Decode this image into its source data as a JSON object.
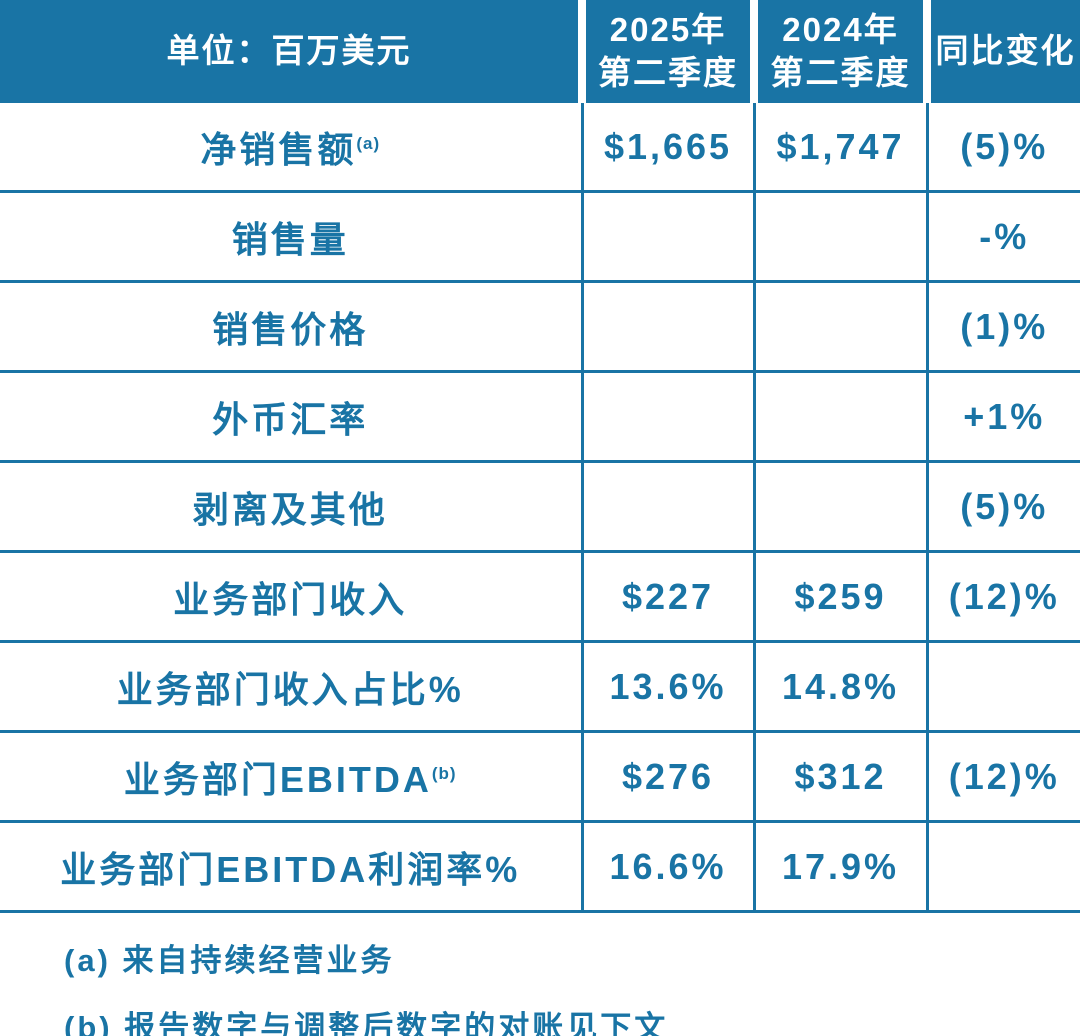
{
  "accent_color": "#1974a5",
  "background_color": "#ffffff",
  "table": {
    "header": {
      "unit_label": "单位：百万美元",
      "col_2025": {
        "line1": "2025年",
        "line2": "第二季度"
      },
      "col_2024": {
        "line1": "2024年",
        "line2": "第二季度"
      },
      "col_change": "同比变化"
    },
    "rows": [
      {
        "label": "净销售额",
        "sup": "(a)",
        "v2025": "$1,665",
        "v2024": "$1,747",
        "change": "(5)%"
      },
      {
        "label": "销售量",
        "sup": "",
        "v2025": "",
        "v2024": "",
        "change": "-%"
      },
      {
        "label": "销售价格",
        "sup": "",
        "v2025": "",
        "v2024": "",
        "change": "(1)%"
      },
      {
        "label": "外币汇率",
        "sup": "",
        "v2025": "",
        "v2024": "",
        "change": "+1%"
      },
      {
        "label": "剥离及其他",
        "sup": "",
        "v2025": "",
        "v2024": "",
        "change": "(5)%"
      },
      {
        "label": "业务部门收入",
        "sup": "",
        "v2025": "$227",
        "v2024": "$259",
        "change": "(12)%"
      },
      {
        "label": "业务部门收入占比%",
        "sup": "",
        "v2025": "13.6%",
        "v2024": "14.8%",
        "change": ""
      },
      {
        "label": "业务部门EBITDA",
        "sup": "(b)",
        "v2025": "$276",
        "v2024": "$312",
        "change": "(12)%"
      },
      {
        "label": "业务部门EBITDA利润率%",
        "sup": "",
        "v2025": "16.6%",
        "v2024": "17.9%",
        "change": ""
      }
    ]
  },
  "footnotes": [
    {
      "text": "(a) 来自持续经营业务"
    },
    {
      "text": "(b) 报告数字与调整后数字的对账见下文"
    }
  ],
  "chart_data": {
    "type": "table",
    "title": "单位：百万美元",
    "columns": [
      "单位：百万美元",
      "2025年第二季度",
      "2024年第二季度",
      "同比变化"
    ],
    "rows": [
      [
        "净销售额(a)",
        "$1,665",
        "$1,747",
        "(5)%"
      ],
      [
        "销售量",
        "",
        "",
        "-%"
      ],
      [
        "销售价格",
        "",
        "",
        "(1)%"
      ],
      [
        "外币汇率",
        "",
        "",
        "+1%"
      ],
      [
        "剥离及其他",
        "",
        "",
        "(5)%"
      ],
      [
        "业务部门收入",
        "$227",
        "$259",
        "(12)%"
      ],
      [
        "业务部门收入占比%",
        "13.6%",
        "14.8%",
        ""
      ],
      [
        "业务部门EBITDA(b)",
        "$276",
        "$312",
        "(12)%"
      ],
      [
        "业务部门EBITDA利润率%",
        "16.6%",
        "17.9%",
        ""
      ]
    ],
    "layout": {
      "header_background": "#1974a5",
      "header_text_color": "#ffffff",
      "body_text_color": "#1974a5",
      "grid_color": "#1974a5",
      "grid_on": true
    }
  }
}
